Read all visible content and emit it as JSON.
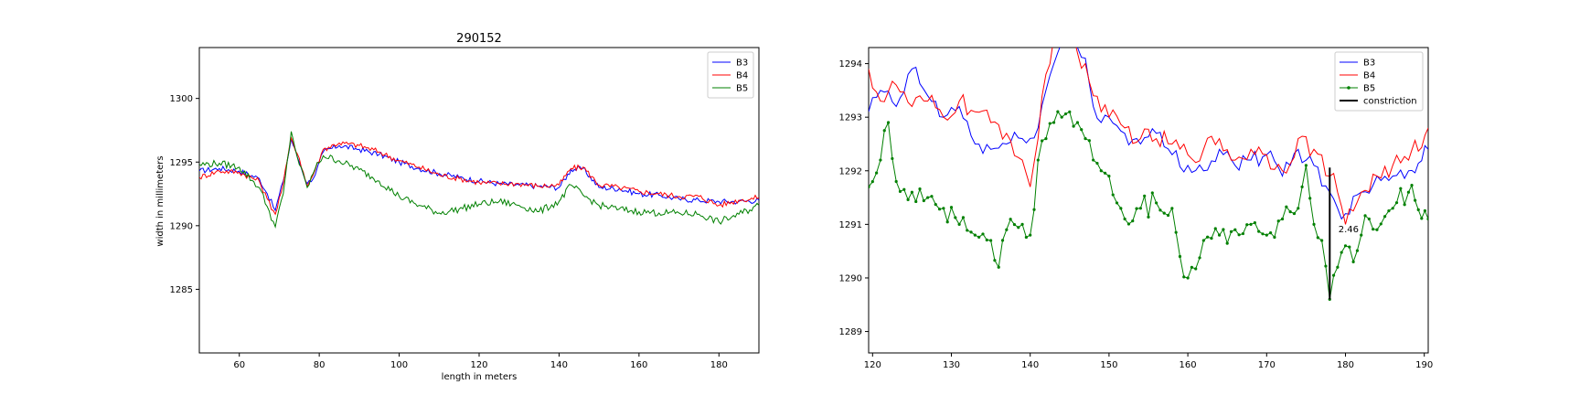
{
  "chart_data": [
    {
      "type": "line",
      "title": "290152",
      "xlabel": "length in meters",
      "ylabel": "width in millimeters",
      "xlim": [
        50,
        190
      ],
      "ylim": [
        1280,
        1304
      ],
      "xticks": [
        60,
        80,
        100,
        120,
        140,
        160,
        180
      ],
      "yticks": [
        1285,
        1290,
        1295,
        1300
      ],
      "legend_position": "top-right",
      "grid": false,
      "series": [
        {
          "name": "B3",
          "color": "#0000ff",
          "marker": false,
          "x": [
            50,
            55,
            60,
            65,
            67,
            69,
            71,
            73,
            75,
            77,
            79,
            81,
            85,
            90,
            95,
            100,
            105,
            110,
            115,
            120,
            125,
            130,
            135,
            140,
            143,
            146,
            150,
            155,
            160,
            165,
            170,
            175,
            180,
            185,
            190
          ],
          "y": [
            1294.3,
            1294.5,
            1294.3,
            1293.7,
            1292.5,
            1291.2,
            1293.5,
            1296.8,
            1295.0,
            1293.3,
            1294.0,
            1295.8,
            1296.3,
            1296.0,
            1295.6,
            1295.0,
            1294.5,
            1294.1,
            1293.8,
            1293.5,
            1293.3,
            1293.2,
            1293.1,
            1293.0,
            1294.4,
            1294.5,
            1293.0,
            1292.9,
            1292.5,
            1292.4,
            1292.1,
            1292.0,
            1291.9,
            1291.9,
            1292.0
          ]
        },
        {
          "name": "B4",
          "color": "#ff0000",
          "marker": false,
          "x": [
            50,
            55,
            60,
            65,
            67,
            69,
            71,
            73,
            75,
            77,
            79,
            81,
            85,
            90,
            95,
            100,
            105,
            110,
            115,
            120,
            125,
            130,
            135,
            140,
            143,
            146,
            150,
            155,
            160,
            165,
            170,
            175,
            180,
            185,
            190
          ],
          "y": [
            1293.8,
            1294.3,
            1294.2,
            1293.5,
            1292.1,
            1290.9,
            1293.3,
            1296.9,
            1295.3,
            1293.1,
            1294.4,
            1296.0,
            1296.5,
            1296.3,
            1295.8,
            1295.1,
            1294.6,
            1294.0,
            1293.7,
            1293.4,
            1293.3,
            1293.3,
            1293.1,
            1293.2,
            1294.5,
            1294.6,
            1293.2,
            1293.0,
            1292.7,
            1292.5,
            1292.3,
            1292.3,
            1291.6,
            1292.0,
            1292.2
          ]
        },
        {
          "name": "B5",
          "color": "#008000",
          "marker": false,
          "x": [
            50,
            55,
            60,
            65,
            67,
            69,
            71,
            73,
            75,
            77,
            79,
            81,
            85,
            90,
            95,
            100,
            105,
            110,
            115,
            120,
            125,
            130,
            135,
            140,
            143,
            146,
            150,
            155,
            160,
            165,
            170,
            175,
            180,
            185,
            190
          ],
          "y": [
            1294.8,
            1294.9,
            1294.6,
            1293.0,
            1291.5,
            1289.9,
            1292.5,
            1297.4,
            1294.8,
            1293.0,
            1294.5,
            1295.5,
            1295.1,
            1294.4,
            1293.5,
            1292.3,
            1291.6,
            1291.0,
            1291.3,
            1291.7,
            1291.9,
            1291.6,
            1291.1,
            1291.9,
            1293.2,
            1292.4,
            1291.6,
            1291.3,
            1291.1,
            1291.0,
            1291.0,
            1290.9,
            1290.3,
            1290.9,
            1291.6
          ]
        }
      ]
    },
    {
      "type": "line",
      "title": "",
      "xlabel": "",
      "ylabel": "",
      "xlim": [
        119.5,
        190.5
      ],
      "ylim": [
        1288.6,
        1294.3
      ],
      "xticks": [
        120,
        130,
        140,
        150,
        160,
        170,
        180,
        190
      ],
      "yticks": [
        1289,
        1290,
        1291,
        1292,
        1293,
        1294
      ],
      "legend_position": "top-right",
      "grid": false,
      "series": [
        {
          "name": "B3",
          "color": "#0000ff",
          "marker": false,
          "x": [
            119.5,
            121,
            123,
            125,
            127,
            129,
            131,
            133,
            135,
            137,
            139,
            141,
            142,
            143,
            144,
            145,
            146,
            147,
            148,
            149,
            150,
            152,
            154,
            156,
            158,
            160,
            162,
            164,
            166,
            168,
            170,
            172,
            174,
            176,
            178,
            179,
            180,
            182,
            184,
            186,
            188,
            190.5
          ],
          "y": [
            1293.1,
            1293.5,
            1293.2,
            1293.9,
            1293.4,
            1293.0,
            1293.2,
            1292.5,
            1292.4,
            1292.5,
            1292.6,
            1292.8,
            1293.5,
            1294.0,
            1294.4,
            1294.5,
            1294.3,
            1294.1,
            1293.2,
            1292.9,
            1293.0,
            1292.7,
            1292.5,
            1292.7,
            1292.3,
            1292.1,
            1292.0,
            1292.4,
            1292.1,
            1292.2,
            1292.3,
            1291.9,
            1292.4,
            1292.1,
            1291.6,
            1291.3,
            1291.2,
            1291.6,
            1291.9,
            1291.9,
            1292.0,
            1292.4
          ]
        },
        {
          "name": "B4",
          "color": "#ff0000",
          "marker": false,
          "x": [
            119.5,
            121,
            123,
            125,
            127,
            129,
            131,
            133,
            135,
            137,
            139,
            140,
            141,
            142,
            143,
            144,
            145,
            146,
            147,
            148,
            149,
            150,
            152,
            154,
            156,
            158,
            160,
            162,
            164,
            166,
            168,
            170,
            172,
            174,
            176,
            178,
            179,
            180,
            182,
            184,
            186,
            188,
            190.5
          ],
          "y": [
            1293.9,
            1293.3,
            1293.6,
            1293.2,
            1293.3,
            1293.0,
            1293.3,
            1293.1,
            1292.9,
            1292.7,
            1292.2,
            1291.7,
            1292.6,
            1293.8,
            1294.5,
            1294.8,
            1294.6,
            1294.2,
            1294.0,
            1293.4,
            1293.1,
            1293.0,
            1292.8,
            1292.6,
            1292.6,
            1292.5,
            1292.3,
            1292.4,
            1292.6,
            1292.2,
            1292.4,
            1292.3,
            1292.0,
            1292.6,
            1292.4,
            1291.9,
            1291.6,
            1291.0,
            1291.6,
            1291.9,
            1292.1,
            1292.2,
            1292.8
          ]
        },
        {
          "name": "B5",
          "color": "#008000",
          "marker": true,
          "x": [
            119.5,
            121,
            122,
            123,
            125,
            127,
            129,
            131,
            133,
            135,
            136,
            137,
            139,
            140,
            141,
            142,
            143,
            144,
            145,
            146,
            147,
            148,
            149,
            150,
            151,
            152,
            154,
            156,
            158,
            159,
            160,
            162,
            164,
            166,
            168,
            170,
            172,
            174,
            175,
            176,
            177,
            178,
            179,
            180,
            181,
            182,
            183,
            184,
            186,
            188,
            190.5
          ],
          "y": [
            1291.7,
            1292.2,
            1292.9,
            1291.8,
            1291.6,
            1291.5,
            1291.3,
            1291.0,
            1290.8,
            1290.7,
            1290.2,
            1290.9,
            1291.0,
            1290.8,
            1292.2,
            1292.6,
            1292.9,
            1293.0,
            1293.1,
            1292.9,
            1292.6,
            1292.2,
            1292.0,
            1291.9,
            1291.4,
            1291.1,
            1291.3,
            1291.4,
            1291.3,
            1290.4,
            1290.0,
            1290.7,
            1290.8,
            1290.9,
            1291.0,
            1290.8,
            1291.1,
            1291.3,
            1292.1,
            1291.0,
            1290.7,
            1289.6,
            1290.2,
            1290.6,
            1290.3,
            1290.8,
            1291.1,
            1290.9,
            1291.3,
            1291.6,
            1291.1
          ]
        },
        {
          "name": "constriction",
          "color": "#000000",
          "marker": false,
          "x": [
            178,
            178
          ],
          "y": [
            1292.06,
            1289.6
          ]
        }
      ],
      "annotations": [
        {
          "text": "2.46",
          "x": 179.1,
          "y": 1290.85
        }
      ]
    }
  ]
}
